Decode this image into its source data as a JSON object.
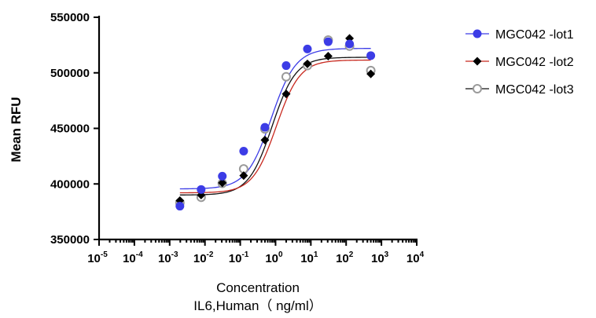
{
  "chart_data": {
    "type": "scatter",
    "ylabel": "Mean RFU",
    "xlabel_line1": "Concentration",
    "xlabel_line2": "IL6,Human（ ng/ml）",
    "xscale": "log",
    "xlim": [
      1e-05,
      10000
    ],
    "ylim": [
      350000,
      550000
    ],
    "yticks": [
      350000,
      400000,
      450000,
      500000,
      550000
    ],
    "yticklabels": [
      "350000",
      "400000",
      "450000",
      "500000",
      "550000"
    ],
    "xticks": [
      {
        "value": 1e-05,
        "base": "10",
        "exp": "-5"
      },
      {
        "value": 0.0001,
        "base": "10",
        "exp": "-4"
      },
      {
        "value": 0.001,
        "base": "10",
        "exp": "-3"
      },
      {
        "value": 0.01,
        "base": "10",
        "exp": "-2"
      },
      {
        "value": 0.1,
        "base": "10",
        "exp": "-1"
      },
      {
        "value": 1,
        "base": "10",
        "exp": "0"
      },
      {
        "value": 10,
        "base": "10",
        "exp": "1"
      },
      {
        "value": 100,
        "base": "10",
        "exp": "2"
      },
      {
        "value": 1000,
        "base": "10",
        "exp": "3"
      },
      {
        "value": 10000,
        "base": "10",
        "exp": "4"
      }
    ],
    "legend_position": "top-right",
    "series": [
      {
        "name": "MGC042 -lot1",
        "color": "#3c3ce6",
        "marker": "circle-filled",
        "x": [
          0.00195,
          0.0078,
          0.031,
          0.125,
          0.5,
          2,
          8,
          31,
          125,
          500
        ],
        "y": [
          380000,
          395000,
          407000,
          429500,
          451000,
          506500,
          521500,
          528000,
          526000,
          515500
        ],
        "fit": {
          "bottom": 395500,
          "top": 522000,
          "ec50": 0.75,
          "hill": 1.25
        }
      },
      {
        "name": "MGC042 -lot2",
        "color": "#c8281e",
        "marker": "diamond-filled",
        "x": [
          0.00195,
          0.0078,
          0.031,
          0.125,
          0.5,
          2,
          8,
          31,
          125,
          500
        ],
        "y": [
          385000,
          390000,
          401000,
          407500,
          439500,
          481000,
          508000,
          515000,
          531000,
          499000
        ],
        "fit": {
          "bottom": 392000,
          "top": 511500,
          "ec50": 1.05,
          "hill": 1.3
        }
      },
      {
        "name": "MGC042 -lot3",
        "color": "#111111",
        "marker": "circle-open",
        "x": [
          0.00195,
          0.0078,
          0.031,
          0.125,
          0.5,
          2,
          8,
          31,
          125,
          500
        ],
        "y": [
          383000,
          388000,
          400500,
          413500,
          449500,
          496500,
          506500,
          529500,
          524000,
          502000
        ],
        "fit": {
          "bottom": 390000,
          "top": 514000,
          "ec50": 0.8,
          "hill": 1.3
        }
      }
    ]
  }
}
